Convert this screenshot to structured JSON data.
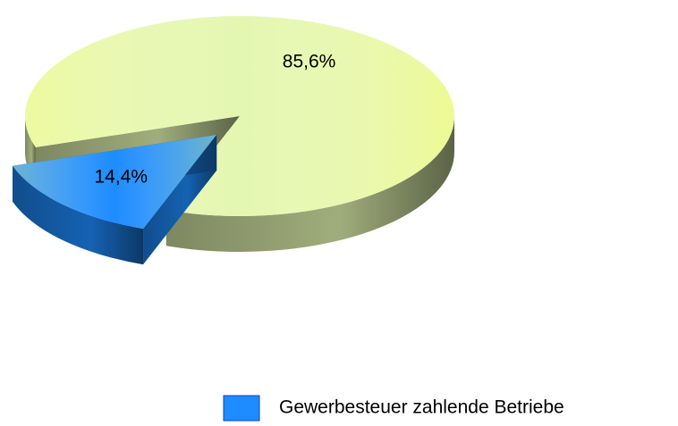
{
  "chart_data": {
    "type": "pie3d",
    "categories": [
      null,
      "Gewerbesteuer zahlende Betriebe"
    ],
    "values": [
      85.6,
      14.4
    ],
    "value_labels": [
      "85,6%",
      "14,4%"
    ],
    "colors": [
      "#e4f7b0",
      "#1e8cff"
    ],
    "exploded": [
      false,
      true
    ],
    "legend": "bottom-right"
  }
}
